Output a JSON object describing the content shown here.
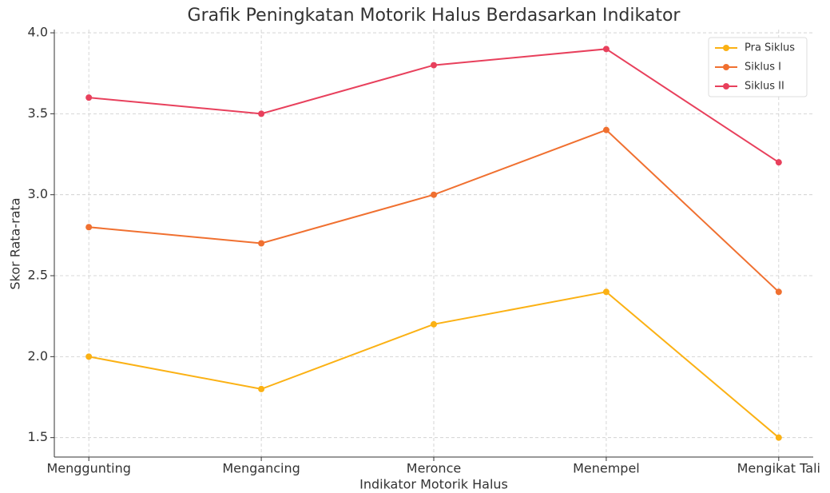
{
  "chart_data": {
    "type": "line",
    "title": "Grafik Peningkatan Motorik Halus Berdasarkan Indikator",
    "xlabel": "Indikator Motorik Halus",
    "ylabel": "Skor Rata-rata",
    "categories": [
      "Menggunting",
      "Mengancing",
      "Meronce",
      "Menempel",
      "Mengikat Tali"
    ],
    "series": [
      {
        "name": "Pra Siklus",
        "color": "#fbb114",
        "values": [
          2.0,
          1.8,
          2.2,
          2.4,
          1.5
        ]
      },
      {
        "name": "Siklus I",
        "color": "#f07030",
        "values": [
          2.8,
          2.7,
          3.0,
          3.4,
          2.4
        ]
      },
      {
        "name": "Siklus II",
        "color": "#e8405c",
        "values": [
          3.6,
          3.5,
          3.8,
          3.9,
          3.2
        ]
      }
    ],
    "ylim": [
      1.38,
      4.02
    ],
    "yticks": [
      {
        "value": 1.5,
        "label": "1.5"
      },
      {
        "value": 2.0,
        "label": "2.0"
      },
      {
        "value": 2.5,
        "label": "2.5"
      },
      {
        "value": 3.0,
        "label": "3.0"
      },
      {
        "value": 3.5,
        "label": "3.5"
      },
      {
        "value": 4.0,
        "label": "4.0"
      }
    ],
    "grid": true,
    "legend": "upper right"
  }
}
